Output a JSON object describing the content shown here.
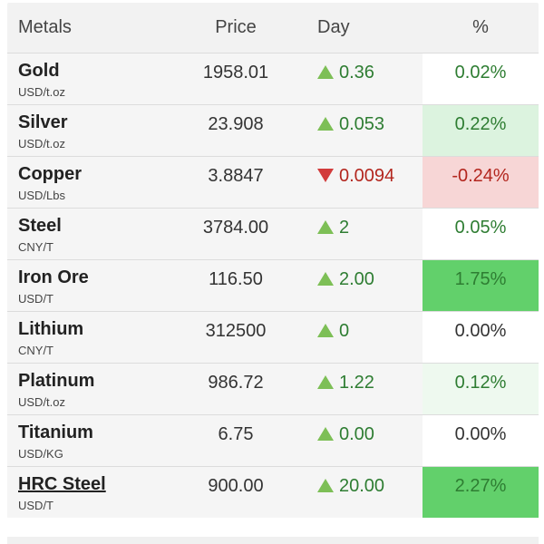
{
  "headers": {
    "metals": "Metals",
    "price": "Price",
    "day": "Day",
    "pct": "%"
  },
  "colors": {
    "up_arrow": "#7dbf56",
    "down_arrow": "#d23b3b",
    "positive_text": "#2e7d32",
    "negative_text": "#b3261e"
  },
  "rows": [
    {
      "name": "Gold",
      "unit": "USD/t.oz",
      "price": "1958.01",
      "direction": "up",
      "day": "0.36",
      "pct": "0.02%",
      "pct_bg": "#ffffff",
      "pct_class": "pos",
      "link": false
    },
    {
      "name": "Silver",
      "unit": "USD/t.oz",
      "price": "23.908",
      "direction": "up",
      "day": "0.053",
      "pct": "0.22%",
      "pct_bg": "#dcf3df",
      "pct_class": "pos",
      "link": false
    },
    {
      "name": "Copper",
      "unit": "USD/Lbs",
      "price": "3.8847",
      "direction": "down",
      "day": "0.0094",
      "pct": "-0.24%",
      "pct_bg": "#f7d6d6",
      "pct_class": "neg",
      "link": false
    },
    {
      "name": "Steel",
      "unit": "CNY/T",
      "price": "3784.00",
      "direction": "up",
      "day": "2",
      "pct": "0.05%",
      "pct_bg": "#ffffff",
      "pct_class": "pos",
      "link": false
    },
    {
      "name": "Iron Ore",
      "unit": "USD/T",
      "price": "116.50",
      "direction": "up",
      "day": "2.00",
      "pct": "1.75%",
      "pct_bg": "#62d06b",
      "pct_class": "pos",
      "link": false
    },
    {
      "name": "Lithium",
      "unit": "CNY/T",
      "price": "312500",
      "direction": "up",
      "day": "0",
      "pct": "0.00%",
      "pct_bg": "#ffffff",
      "pct_class": "zero",
      "link": false
    },
    {
      "name": "Platinum",
      "unit": "USD/t.oz",
      "price": "986.72",
      "direction": "up",
      "day": "1.22",
      "pct": "0.12%",
      "pct_bg": "#eef9ef",
      "pct_class": "pos",
      "link": false
    },
    {
      "name": "Titanium",
      "unit": "USD/KG",
      "price": "6.75",
      "direction": "up",
      "day": "0.00",
      "pct": "0.00%",
      "pct_bg": "#ffffff",
      "pct_class": "zero",
      "link": false
    },
    {
      "name": "HRC Steel",
      "unit": "USD/T",
      "price": "900.00",
      "direction": "up",
      "day": "20.00",
      "pct": "2.27%",
      "pct_bg": "#62d06b",
      "pct_class": "pos",
      "link": true
    }
  ]
}
